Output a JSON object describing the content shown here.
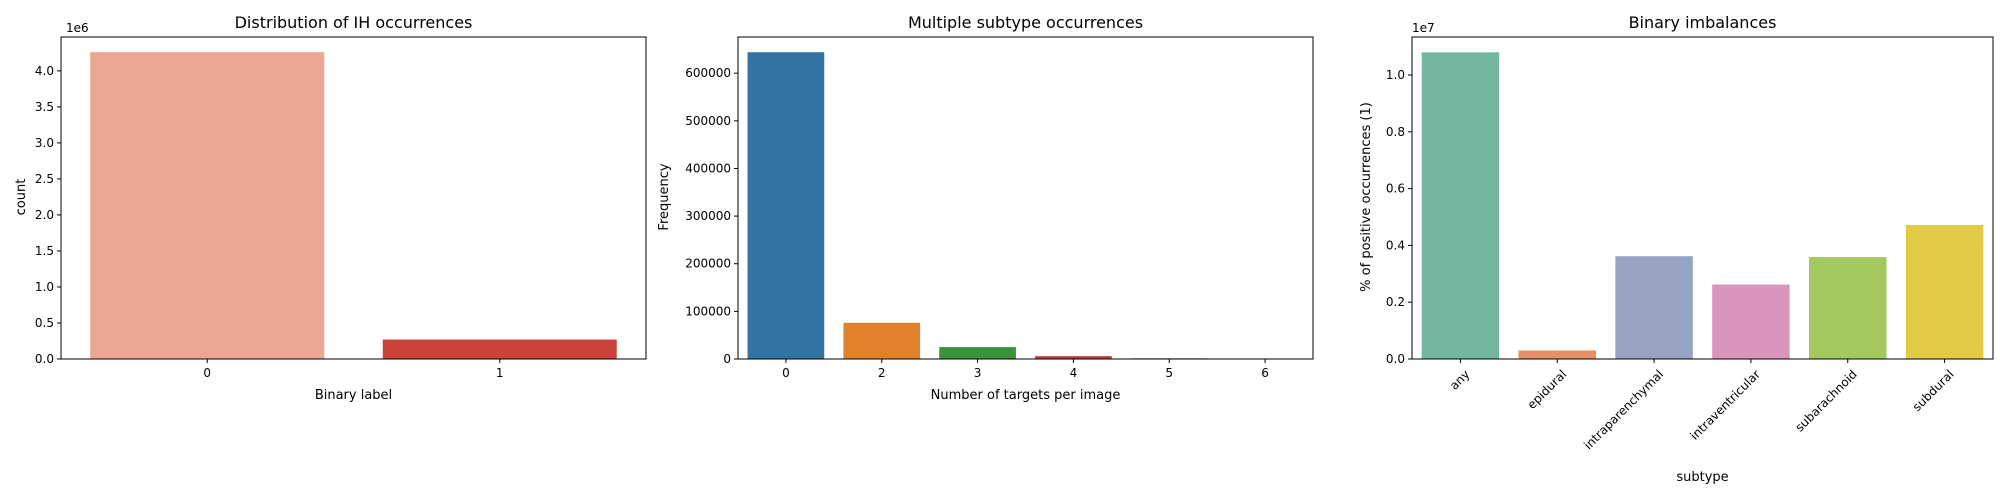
{
  "chart_data": [
    {
      "type": "bar",
      "title": "Distribution of IH occurrences",
      "xlabel": "Binary label",
      "ylabel": "count",
      "y_offset_label": "1e6",
      "y_scale": 1000000,
      "categories": [
        "0",
        "1"
      ],
      "values": [
        4260000,
        270000
      ],
      "colors": [
        "#ECA792",
        "#CB4339"
      ],
      "ylim": [
        0,
        4470000
      ],
      "yticks": [
        0,
        500000,
        1000000,
        1500000,
        2000000,
        2500000,
        3000000,
        3500000,
        4000000
      ],
      "ytick_labels": [
        "0.0",
        "0.5",
        "1.0",
        "1.5",
        "2.0",
        "2.5",
        "3.0",
        "3.5",
        "4.0"
      ],
      "grid": false,
      "rotate_xticks": false
    },
    {
      "type": "bar",
      "title": "Multiple subtype occurrences",
      "xlabel": "Number of targets per image",
      "ylabel": "Frequency",
      "y_offset_label": "",
      "y_scale": 1,
      "categories": [
        "0",
        "2",
        "3",
        "4",
        "5",
        "6"
      ],
      "values": [
        644000,
        76000,
        25000,
        6000,
        1500,
        500
      ],
      "colors": [
        "#3274A1",
        "#E1812C",
        "#3A923A",
        "#C03D3E",
        "#9372B2",
        "#845B53"
      ],
      "ylim": [
        0,
        676000
      ],
      "yticks": [
        0,
        100000,
        200000,
        300000,
        400000,
        500000,
        600000
      ],
      "ytick_labels": [
        "0",
        "100000",
        "200000",
        "300000",
        "400000",
        "500000",
        "600000"
      ],
      "grid": false,
      "rotate_xticks": false
    },
    {
      "type": "bar",
      "title": "Binary imbalances",
      "xlabel": "subtype",
      "ylabel": "% of positive occurrences (1)",
      "y_offset_label": "1e7",
      "y_scale": 10000000,
      "categories": [
        "any",
        "epidural",
        "intraparenchymal",
        "intraventricular",
        "subarachnoid",
        "subdural"
      ],
      "values": [
        10800000,
        300000,
        3620000,
        2620000,
        3590000,
        4720000
      ],
      "colors": [
        "#73B69F",
        "#E78D68",
        "#96A3C3",
        "#DA95BF",
        "#A4CA5F",
        "#E3CB47"
      ],
      "ylim": [
        0,
        11340000
      ],
      "yticks": [
        0,
        2000000,
        4000000,
        6000000,
        8000000,
        10000000
      ],
      "ytick_labels": [
        "0.0",
        "0.2",
        "0.4",
        "0.6",
        "0.8",
        "1.0"
      ],
      "grid": false,
      "rotate_xticks": true
    }
  ]
}
